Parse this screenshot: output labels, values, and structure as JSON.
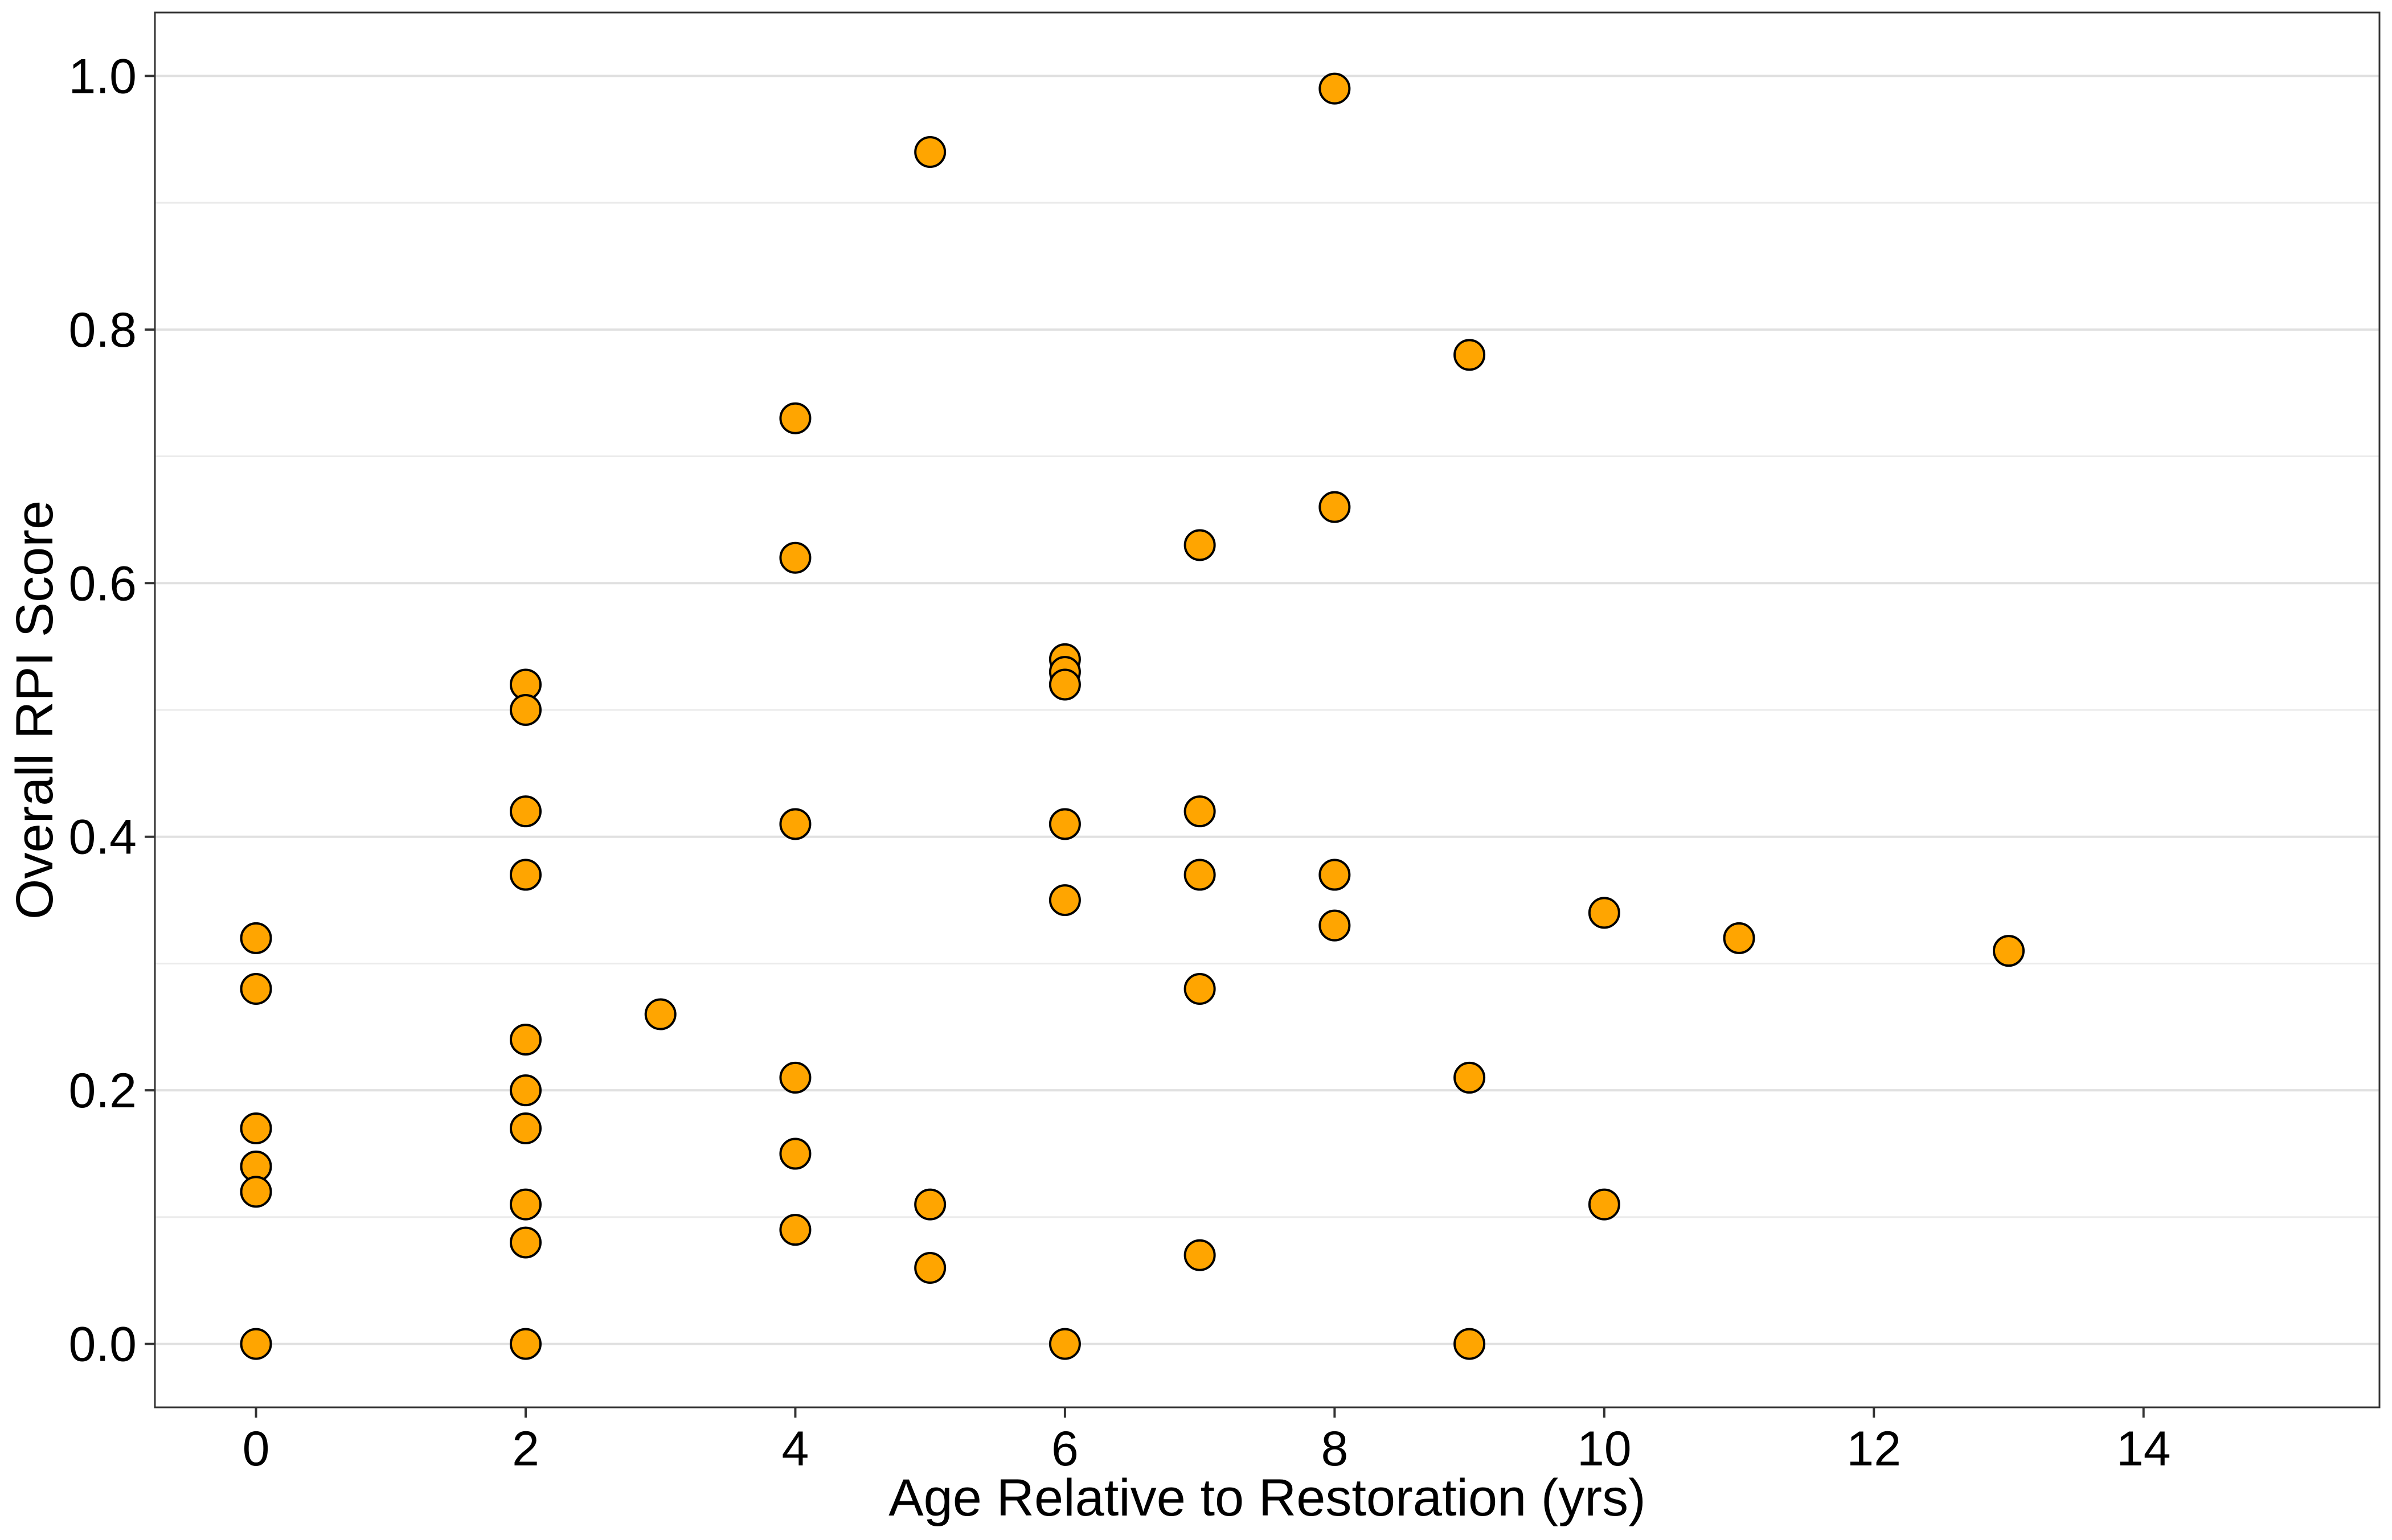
{
  "chart_data": {
    "type": "scatter",
    "title": "",
    "xlabel": "Age Relative to Restoration (yrs)",
    "ylabel": "Overall RPI Score",
    "xlim": [
      -0.75,
      15.75
    ],
    "ylim": [
      -0.05,
      1.05
    ],
    "xticks": [
      0,
      2,
      4,
      6,
      8,
      10,
      12,
      14
    ],
    "xtick_labels": [
      "0",
      "2",
      "4",
      "6",
      "8",
      "10",
      "12",
      "14"
    ],
    "yticks": [
      0.0,
      0.2,
      0.4,
      0.6,
      0.8,
      1.0
    ],
    "ytick_labels": [
      "0.0",
      "0.2",
      "0.4",
      "0.6",
      "0.8",
      "1.0"
    ],
    "grid": {
      "horizontal_major": true,
      "horizontal_minor": true,
      "vertical": false
    },
    "marker_fill": "#FFA500",
    "marker_edge": "#000000",
    "series": [
      {
        "points": [
          {
            "x": 0,
            "y": 0.32
          },
          {
            "x": 0,
            "y": 0.28
          },
          {
            "x": 0,
            "y": 0.17
          },
          {
            "x": 0,
            "y": 0.14
          },
          {
            "x": 0,
            "y": 0.12
          },
          {
            "x": 0,
            "y": 0.0
          },
          {
            "x": 2,
            "y": 0.52
          },
          {
            "x": 2,
            "y": 0.5
          },
          {
            "x": 2,
            "y": 0.42
          },
          {
            "x": 2,
            "y": 0.37
          },
          {
            "x": 2,
            "y": 0.24
          },
          {
            "x": 2,
            "y": 0.2
          },
          {
            "x": 2,
            "y": 0.17
          },
          {
            "x": 2,
            "y": 0.11
          },
          {
            "x": 2,
            "y": 0.08
          },
          {
            "x": 2,
            "y": 0.0
          },
          {
            "x": 3,
            "y": 0.26
          },
          {
            "x": 4,
            "y": 0.73
          },
          {
            "x": 4,
            "y": 0.62
          },
          {
            "x": 4,
            "y": 0.41
          },
          {
            "x": 4,
            "y": 0.21
          },
          {
            "x": 4,
            "y": 0.15
          },
          {
            "x": 4,
            "y": 0.09
          },
          {
            "x": 5,
            "y": 0.94
          },
          {
            "x": 5,
            "y": 0.11
          },
          {
            "x": 5,
            "y": 0.06
          },
          {
            "x": 6,
            "y": 0.54
          },
          {
            "x": 6,
            "y": 0.53
          },
          {
            "x": 6,
            "y": 0.52
          },
          {
            "x": 6,
            "y": 0.41
          },
          {
            "x": 6,
            "y": 0.35
          },
          {
            "x": 6,
            "y": 0.0
          },
          {
            "x": 7,
            "y": 0.63
          },
          {
            "x": 7,
            "y": 0.42
          },
          {
            "x": 7,
            "y": 0.37
          },
          {
            "x": 7,
            "y": 0.28
          },
          {
            "x": 7,
            "y": 0.07
          },
          {
            "x": 8,
            "y": 0.99
          },
          {
            "x": 8,
            "y": 0.66
          },
          {
            "x": 8,
            "y": 0.37
          },
          {
            "x": 8,
            "y": 0.33
          },
          {
            "x": 9,
            "y": 0.78
          },
          {
            "x": 9,
            "y": 0.21
          },
          {
            "x": 9,
            "y": 0.0
          },
          {
            "x": 10,
            "y": 0.34
          },
          {
            "x": 10,
            "y": 0.11
          },
          {
            "x": 11,
            "y": 0.32
          },
          {
            "x": 13,
            "y": 0.31
          }
        ]
      }
    ]
  }
}
